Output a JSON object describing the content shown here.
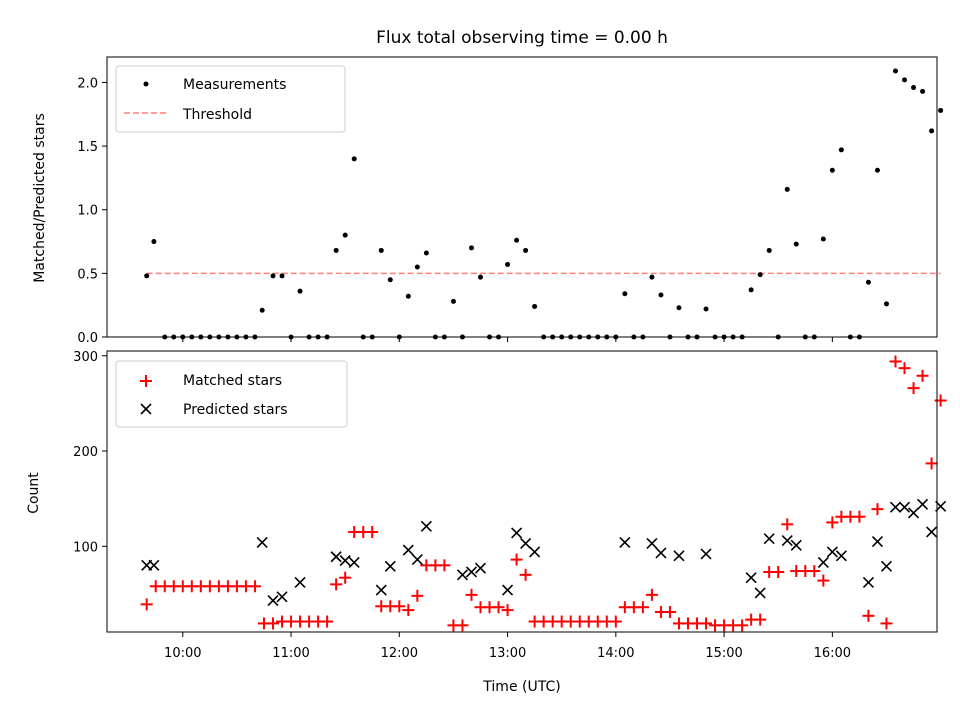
{
  "chart_data": [
    {
      "type": "scatter",
      "title": "Flux total observing time = 0.00 h",
      "xlabel": "",
      "ylabel": "Matched/Predicted stars",
      "xlim": [
        "09:18",
        "16:58"
      ],
      "ylim": [
        0,
        2.2
      ],
      "yticks": [
        "0.0",
        "0.5",
        "1.0",
        "1.5",
        "2.0"
      ],
      "grid": false,
      "legend_placement": "top-left",
      "legend": [
        "Measurements",
        "Threshold"
      ],
      "series": [
        {
          "name": "Measurements",
          "color": "#000000",
          "marker": "dot",
          "points": [
            [
              "09:40",
              0.48
            ],
            [
              "09:44",
              0.75
            ],
            [
              "09:50",
              0.0
            ],
            [
              "09:55",
              0.0
            ],
            [
              "10:00",
              0.0
            ],
            [
              "10:05",
              0.0
            ],
            [
              "10:10",
              0.0
            ],
            [
              "10:15",
              0.0
            ],
            [
              "10:20",
              0.0
            ],
            [
              "10:25",
              0.0
            ],
            [
              "10:30",
              0.0
            ],
            [
              "10:35",
              0.0
            ],
            [
              "10:40",
              0.0
            ],
            [
              "10:44",
              0.21
            ],
            [
              "10:50",
              0.48
            ],
            [
              "10:55",
              0.48
            ],
            [
              "11:00",
              0.0
            ],
            [
              "11:05",
              0.36
            ],
            [
              "11:10",
              0.0
            ],
            [
              "11:15",
              0.0
            ],
            [
              "11:20",
              0.0
            ],
            [
              "11:25",
              0.68
            ],
            [
              "11:30",
              0.8
            ],
            [
              "11:35",
              1.4
            ],
            [
              "11:40",
              0.0
            ],
            [
              "11:45",
              0.0
            ],
            [
              "11:50",
              0.68
            ],
            [
              "11:55",
              0.45
            ],
            [
              "12:00",
              0.0
            ],
            [
              "12:05",
              0.32
            ],
            [
              "12:10",
              0.55
            ],
            [
              "12:15",
              0.66
            ],
            [
              "12:20",
              0.0
            ],
            [
              "12:25",
              0.0
            ],
            [
              "12:30",
              0.28
            ],
            [
              "12:35",
              0.0
            ],
            [
              "12:40",
              0.7
            ],
            [
              "12:45",
              0.47
            ],
            [
              "12:50",
              0.0
            ],
            [
              "12:55",
              0.0
            ],
            [
              "13:00",
              0.57
            ],
            [
              "13:05",
              0.76
            ],
            [
              "13:10",
              0.68
            ],
            [
              "13:15",
              0.24
            ],
            [
              "13:20",
              0.0
            ],
            [
              "13:25",
              0.0
            ],
            [
              "13:30",
              0.0
            ],
            [
              "13:35",
              0.0
            ],
            [
              "13:40",
              0.0
            ],
            [
              "13:45",
              0.0
            ],
            [
              "13:50",
              0.0
            ],
            [
              "13:55",
              0.0
            ],
            [
              "14:00",
              0.0
            ],
            [
              "14:05",
              0.34
            ],
            [
              "14:10",
              0.0
            ],
            [
              "14:15",
              0.0
            ],
            [
              "14:20",
              0.47
            ],
            [
              "14:25",
              0.33
            ],
            [
              "14:30",
              0.0
            ],
            [
              "14:35",
              0.23
            ],
            [
              "14:40",
              0.0
            ],
            [
              "14:45",
              0.0
            ],
            [
              "14:50",
              0.22
            ],
            [
              "14:55",
              0.0
            ],
            [
              "15:00",
              0.0
            ],
            [
              "15:05",
              0.0
            ],
            [
              "15:10",
              0.0
            ],
            [
              "15:15",
              0.37
            ],
            [
              "15:20",
              0.49
            ],
            [
              "15:25",
              0.68
            ],
            [
              "15:30",
              0.0
            ],
            [
              "15:35",
              1.16
            ],
            [
              "15:40",
              0.73
            ],
            [
              "15:45",
              0.0
            ],
            [
              "15:50",
              0.0
            ],
            [
              "15:55",
              0.77
            ],
            [
              "16:00",
              1.31
            ],
            [
              "16:05",
              1.47
            ],
            [
              "16:10",
              0.0
            ],
            [
              "16:15",
              0.0
            ],
            [
              "16:20",
              0.43
            ],
            [
              "16:25",
              1.31
            ],
            [
              "16:30",
              0.26
            ],
            [
              "16:35",
              2.09
            ],
            [
              "16:40",
              2.02
            ],
            [
              "16:45",
              1.96
            ],
            [
              "16:50",
              1.93
            ],
            [
              "16:55",
              1.62
            ],
            [
              "17:00",
              1.78
            ]
          ]
        },
        {
          "name": "Threshold",
          "color": "#ff7f7f",
          "style": "dashed",
          "x": [
            "09:40",
            "17:00"
          ],
          "y": [
            0.5,
            0.5
          ]
        }
      ]
    },
    {
      "type": "scatter",
      "title": "",
      "xlabel": "Time (UTC)",
      "ylabel": "Count",
      "xlim": [
        "09:18",
        "16:58"
      ],
      "ylim": [
        10,
        305
      ],
      "xticks": [
        "10:00",
        "11:00",
        "12:00",
        "13:00",
        "14:00",
        "15:00",
        "16:00"
      ],
      "yticks": [
        "100",
        "200",
        "300"
      ],
      "grid": false,
      "legend_placement": "top-left",
      "legend": [
        "Matched stars",
        "Predicted stars"
      ],
      "series": [
        {
          "name": "Matched stars",
          "color": "#ff0000",
          "marker": "plus",
          "points": [
            [
              "09:40",
              39
            ],
            [
              "09:45",
              58
            ],
            [
              "09:50",
              58
            ],
            [
              "09:55",
              58
            ],
            [
              "10:00",
              58
            ],
            [
              "10:05",
              58
            ],
            [
              "10:10",
              58
            ],
            [
              "10:15",
              58
            ],
            [
              "10:20",
              58
            ],
            [
              "10:25",
              58
            ],
            [
              "10:30",
              58
            ],
            [
              "10:35",
              58
            ],
            [
              "10:40",
              58
            ],
            [
              "10:45",
              19
            ],
            [
              "10:50",
              19
            ],
            [
              "10:55",
              21
            ],
            [
              "11:00",
              21
            ],
            [
              "11:05",
              21
            ],
            [
              "11:10",
              21
            ],
            [
              "11:15",
              21
            ],
            [
              "11:20",
              21
            ],
            [
              "11:25",
              60
            ],
            [
              "11:30",
              67
            ],
            [
              "11:35",
              115
            ],
            [
              "11:40",
              115
            ],
            [
              "11:45",
              115
            ],
            [
              "11:50",
              37
            ],
            [
              "11:55",
              37
            ],
            [
              "12:00",
              37
            ],
            [
              "12:05",
              33
            ],
            [
              "12:10",
              48
            ],
            [
              "12:15",
              80
            ],
            [
              "12:20",
              80
            ],
            [
              "12:25",
              80
            ],
            [
              "12:30",
              17
            ],
            [
              "12:35",
              17
            ],
            [
              "12:40",
              49
            ],
            [
              "12:45",
              36
            ],
            [
              "12:50",
              36
            ],
            [
              "12:55",
              36
            ],
            [
              "13:00",
              33
            ],
            [
              "13:05",
              86
            ],
            [
              "13:10",
              70
            ],
            [
              "13:15",
              21
            ],
            [
              "13:20",
              21
            ],
            [
              "13:25",
              21
            ],
            [
              "13:30",
              21
            ],
            [
              "13:35",
              21
            ],
            [
              "13:40",
              21
            ],
            [
              "13:45",
              21
            ],
            [
              "13:50",
              21
            ],
            [
              "13:55",
              21
            ],
            [
              "14:00",
              21
            ],
            [
              "14:05",
              36
            ],
            [
              "14:10",
              36
            ],
            [
              "14:15",
              36
            ],
            [
              "14:20",
              49
            ],
            [
              "14:25",
              31
            ],
            [
              "14:30",
              31
            ],
            [
              "14:35",
              19
            ],
            [
              "14:40",
              19
            ],
            [
              "14:45",
              19
            ],
            [
              "14:50",
              19
            ],
            [
              "14:55",
              17
            ],
            [
              "15:00",
              17
            ],
            [
              "15:05",
              17
            ],
            [
              "15:10",
              17
            ],
            [
              "15:15",
              23
            ],
            [
              "15:20",
              23
            ],
            [
              "15:25",
              73
            ],
            [
              "15:30",
              73
            ],
            [
              "15:35",
              123
            ],
            [
              "15:40",
              74
            ],
            [
              "15:45",
              74
            ],
            [
              "15:50",
              74
            ],
            [
              "15:55",
              64
            ],
            [
              "16:00",
              125
            ],
            [
              "16:05",
              131
            ],
            [
              "16:10",
              131
            ],
            [
              "16:15",
              131
            ],
            [
              "16:20",
              27
            ],
            [
              "16:25",
              139
            ],
            [
              "16:30",
              19
            ],
            [
              "16:35",
              294
            ],
            [
              "16:40",
              287
            ],
            [
              "16:45",
              266
            ],
            [
              "16:50",
              279
            ],
            [
              "16:55",
              187
            ],
            [
              "17:00",
              253
            ]
          ]
        },
        {
          "name": "Predicted stars",
          "color": "#000000",
          "marker": "x",
          "points": [
            [
              "09:40",
              80
            ],
            [
              "09:44",
              80
            ],
            [
              "10:44",
              104
            ],
            [
              "10:50",
              43
            ],
            [
              "10:55",
              47
            ],
            [
              "11:05",
              62
            ],
            [
              "11:25",
              89
            ],
            [
              "11:30",
              85
            ],
            [
              "11:35",
              83
            ],
            [
              "11:50",
              54
            ],
            [
              "11:55",
              79
            ],
            [
              "12:05",
              96
            ],
            [
              "12:10",
              86
            ],
            [
              "12:15",
              121
            ],
            [
              "12:35",
              70
            ],
            [
              "12:40",
              73
            ],
            [
              "12:45",
              77
            ],
            [
              "13:00",
              54
            ],
            [
              "13:05",
              114
            ],
            [
              "13:10",
              103
            ],
            [
              "13:15",
              94
            ],
            [
              "14:05",
              104
            ],
            [
              "14:20",
              103
            ],
            [
              "14:25",
              93
            ],
            [
              "14:35",
              90
            ],
            [
              "14:50",
              92
            ],
            [
              "15:15",
              67
            ],
            [
              "15:20",
              51
            ],
            [
              "15:25",
              108
            ],
            [
              "15:35",
              106
            ],
            [
              "15:40",
              101
            ],
            [
              "15:55",
              83
            ],
            [
              "16:00",
              94
            ],
            [
              "16:05",
              90
            ],
            [
              "16:20",
              62
            ],
            [
              "16:25",
              105
            ],
            [
              "16:30",
              79
            ],
            [
              "16:35",
              141
            ],
            [
              "16:40",
              141
            ],
            [
              "16:45",
              135
            ],
            [
              "16:50",
              144
            ],
            [
              "16:55",
              115
            ],
            [
              "17:00",
              142
            ]
          ]
        }
      ]
    }
  ]
}
